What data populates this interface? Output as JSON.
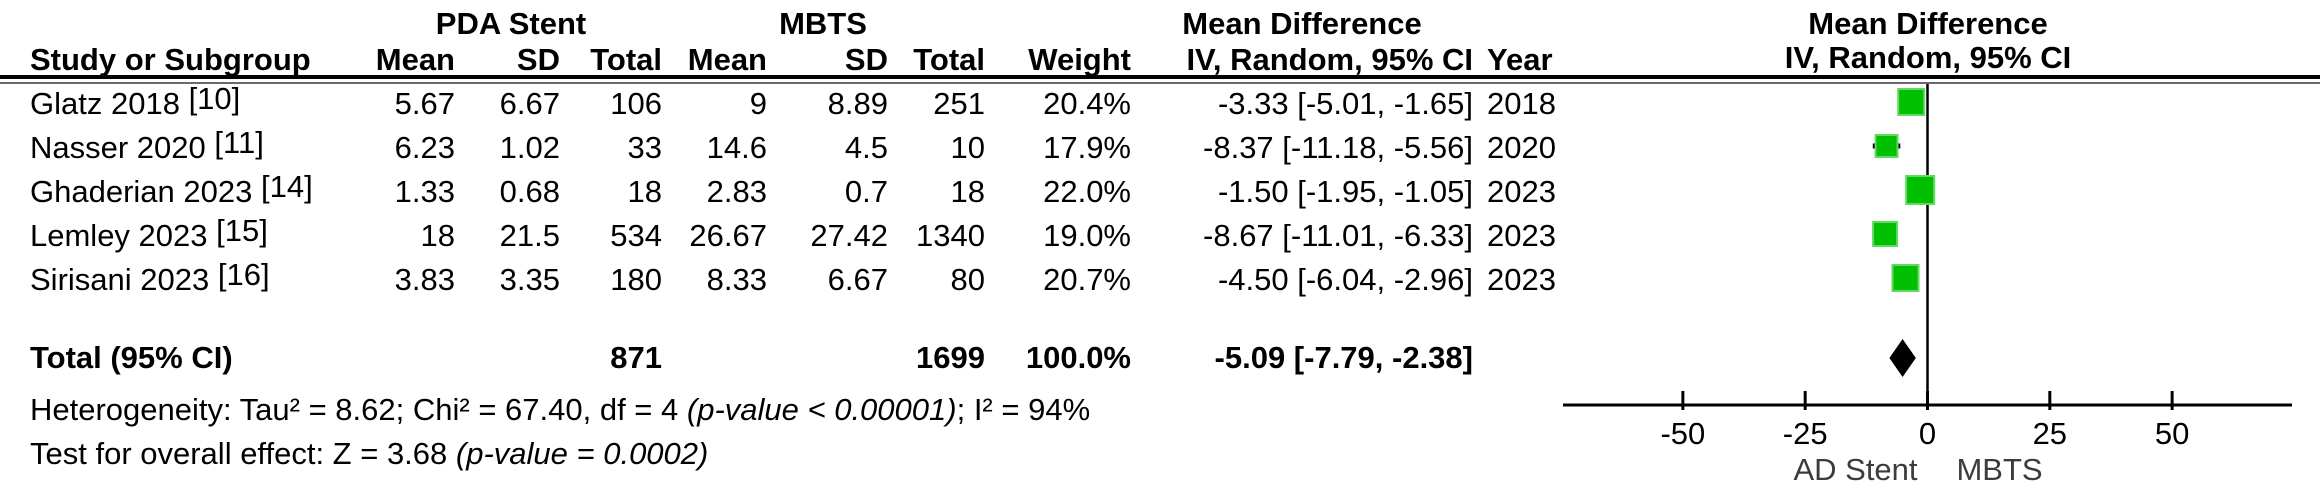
{
  "header": {
    "group1": "PDA Stent",
    "group2": "MBTS",
    "mean_diff_left": "Mean Difference",
    "mean_diff_right": "Mean Difference",
    "col_study": "Study or Subgroup",
    "col_mean1": "Mean",
    "col_sd1": "SD",
    "col_total1": "Total",
    "col_mean2": "Mean",
    "col_sd2": "SD",
    "col_total2": "Total",
    "col_weight": "Weight",
    "col_ci": "IV, Random, 95% CI",
    "col_year": "Year",
    "col_ci_right": "IV, Random, 95% CI"
  },
  "rows": [
    {
      "study": "Glatz 2018",
      "ref": "[10]",
      "mean1": "5.67",
      "sd1": "6.67",
      "total1": "106",
      "mean2": "9",
      "sd2": "8.89",
      "total2": "251",
      "weight": "20.4%",
      "ci": "-3.33 [-5.01, -1.65]",
      "year": "2018"
    },
    {
      "study": "Nasser 2020",
      "ref": "[11]",
      "mean1": "6.23",
      "sd1": "1.02",
      "total1": "33",
      "mean2": "14.6",
      "sd2": "4.5",
      "total2": "10",
      "weight": "17.9%",
      "ci": "-8.37 [-11.18, -5.56]",
      "year": "2020"
    },
    {
      "study": "Ghaderian 2023",
      "ref": "[14]",
      "mean1": "1.33",
      "sd1": "0.68",
      "total1": "18",
      "mean2": "2.83",
      "sd2": "0.7",
      "total2": "18",
      "weight": "22.0%",
      "ci": "-1.50 [-1.95, -1.05]",
      "year": "2023"
    },
    {
      "study": "Lemley 2023",
      "ref": "[15]",
      "mean1": "18",
      "sd1": "21.5",
      "total1": "534",
      "mean2": "26.67",
      "sd2": "27.42",
      "total2": "1340",
      "weight": "19.0%",
      "ci": "-8.67 [-11.01, -6.33]",
      "year": "2023"
    },
    {
      "study": "Sirisani 2023",
      "ref": "[16]",
      "mean1": "3.83",
      "sd1": "3.35",
      "total1": "180",
      "mean2": "8.33",
      "sd2": "6.67",
      "total2": "80",
      "weight": "20.7%",
      "ci": "-4.50 [-6.04, -2.96]",
      "year": "2023"
    }
  ],
  "total": {
    "label": "Total (95% CI)",
    "total1": "871",
    "total2": "1699",
    "weight": "100.0%",
    "ci": "-5.09 [-7.79, -2.38]"
  },
  "footer": {
    "het_pre": "Heterogeneity: Tau² = 8.62; Chi² = 67.40, df = 4 ",
    "het_italic": "(p-value < 0.00001)",
    "het_post": "; I² = 94%",
    "test_pre": "Test for overall effect: Z = 3.68 ",
    "test_italic": "(p-value = 0.0002)"
  },
  "chart_data": {
    "type": "forest",
    "xlabel_ticks": [
      "-50",
      "-25",
      "0",
      "25",
      "50"
    ],
    "tick_values": [
      -50,
      -25,
      0,
      25,
      50
    ],
    "xlim": [
      -74.5,
      74.5
    ],
    "axis_label_left": "AD Stent",
    "axis_label_right": "MBTS",
    "marker_color": "#00C000",
    "marker_edge_color": "#63D963",
    "diamond_color": "#000000",
    "line_color": "#000000",
    "studies": [
      {
        "name": "Glatz 2018",
        "estimate": -3.33,
        "ci_low": -5.01,
        "ci_high": -1.65,
        "weight_pct": 20.4,
        "year": 2018
      },
      {
        "name": "Nasser 2020",
        "estimate": -8.37,
        "ci_low": -11.18,
        "ci_high": -5.56,
        "weight_pct": 17.9,
        "year": 2020
      },
      {
        "name": "Ghaderian 2023",
        "estimate": -1.5,
        "ci_low": -1.95,
        "ci_high": -1.05,
        "weight_pct": 22.0,
        "year": 2023
      },
      {
        "name": "Lemley 2023",
        "estimate": -8.67,
        "ci_low": -11.01,
        "ci_high": -6.33,
        "weight_pct": 19.0,
        "year": 2023
      },
      {
        "name": "Sirisani 2023",
        "estimate": -4.5,
        "ci_low": -6.04,
        "ci_high": -2.96,
        "weight_pct": 20.7,
        "year": 2023
      }
    ],
    "total": {
      "estimate": -5.09,
      "ci_low": -7.79,
      "ci_high": -2.38,
      "weight_pct": 100.0
    }
  }
}
